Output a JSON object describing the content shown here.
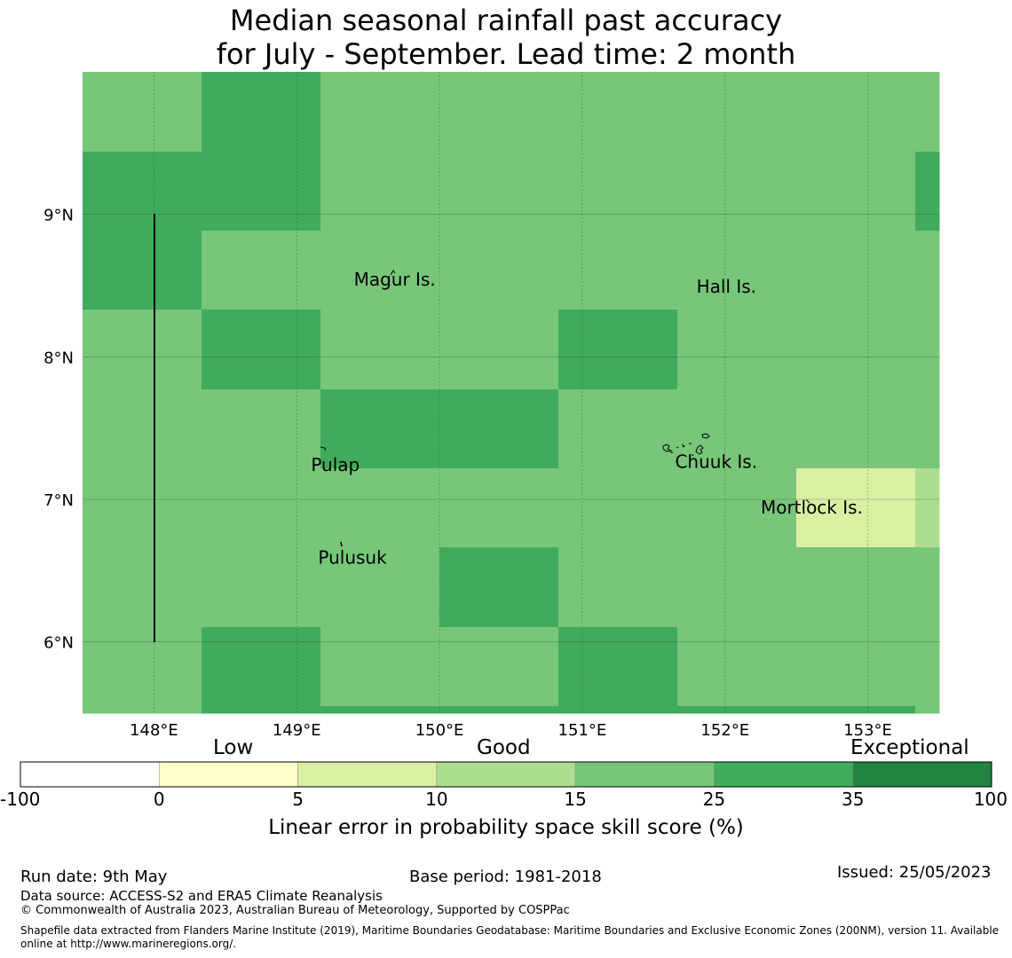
{
  "title": {
    "line1": "Median seasonal rainfall past accuracy",
    "line2": "for July - September. Lead time: 2 month"
  },
  "map": {
    "lon_range": [
      147.5,
      153.5
    ],
    "lat_range": [
      5.5,
      10.0
    ],
    "x_ticks": [
      148,
      149,
      150,
      151,
      152,
      153
    ],
    "x_tick_labels": [
      "148°E",
      "149°E",
      "150°E",
      "151°E",
      "152°E",
      "153°E"
    ],
    "y_ticks": [
      6,
      7,
      8,
      9
    ],
    "y_tick_labels": [
      "6°N",
      "7°N",
      "8°N",
      "9°N"
    ],
    "places": [
      {
        "name": "Magur Is.",
        "lon": 149.4,
        "lat": 8.5
      },
      {
        "name": "Hall Is.",
        "lon": 151.8,
        "lat": 8.45
      },
      {
        "name": "Pulap",
        "lon": 149.1,
        "lat": 7.2
      },
      {
        "name": "Chuuk Is.",
        "lon": 151.65,
        "lat": 7.22
      },
      {
        "name": "Mortlock Is.",
        "lon": 152.25,
        "lat": 6.9
      },
      {
        "name": "Pulusuk",
        "lon": 149.15,
        "lat": 6.55
      }
    ]
  },
  "colorbar": {
    "section_labels": [
      "Low",
      "Good",
      "Exceptional"
    ],
    "boundaries": [
      "-100",
      "0",
      "5",
      "10",
      "15",
      "25",
      "35",
      "100"
    ],
    "colors": [
      "#ffffff",
      "#ffffcc",
      "#d9f0a3",
      "#addd8e",
      "#78c679",
      "#41ab5d",
      "#238443"
    ],
    "label": "Linear error in probability space skill score (%)"
  },
  "footer": {
    "run_date": "Run date: 9th May",
    "base_period": "Base period: 1981-2018",
    "issued": "Issued: 25/05/2023",
    "data_source": "Data source: ACCESS-S2 and ERA5 Climate Reanalysis",
    "copyright": "© Commonwealth of Australia 2023, Australian Bureau of Meteorology, Supported by COSPPac",
    "shapefile_line1": "Shapefile data extracted from Flanders Marine Institute (2019), Maritime Boundaries Geodatabase: Maritime Boundaries and Exclusive Economic Zones (200NM), version 11. Available",
    "shapefile_line2": "online at http://www.marineregions.org/."
  }
}
